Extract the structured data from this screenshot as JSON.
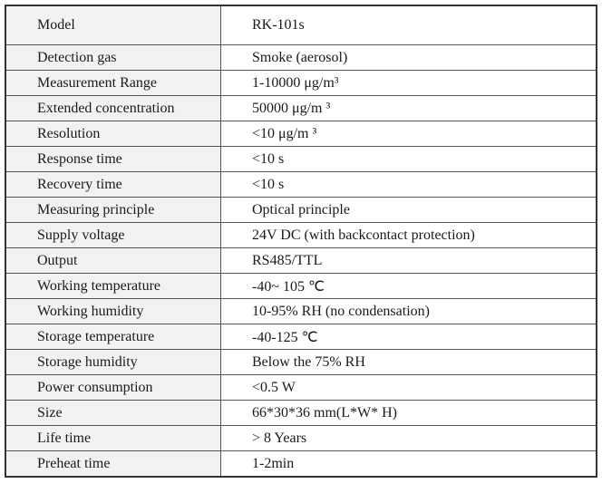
{
  "table": {
    "rows": [
      [
        "Model",
        "RK-101s"
      ],
      [
        "Detection gas",
        "Smoke (aerosol)"
      ],
      [
        "Measurement Range",
        "1-10000 μg/m³"
      ],
      [
        "Extended concentration",
        "50000 μg/m ³"
      ],
      [
        "Resolution",
        "<10 μg/m ³"
      ],
      [
        "Response time",
        "<10 s"
      ],
      [
        "Recovery time",
        "<10 s"
      ],
      [
        "Measuring principle",
        "Optical principle"
      ],
      [
        "Supply voltage",
        "24V DC (with backcontact protection)"
      ],
      [
        "Output",
        "RS485/TTL"
      ],
      [
        "Working temperature",
        "-40~ 105 ℃"
      ],
      [
        "Working humidity",
        "10-95% RH (no condensation)"
      ],
      [
        "Storage temperature",
        "-40-125 ℃"
      ],
      [
        "Storage humidity",
        "Below the 75% RH"
      ],
      [
        "Power consumption",
        "<0.5 W"
      ],
      [
        "Size",
        "66*30*36 mm(L*W* H)"
      ],
      [
        "Life time",
        "> 8 Years"
      ],
      [
        "Preheat time",
        "1-2min"
      ]
    ]
  }
}
